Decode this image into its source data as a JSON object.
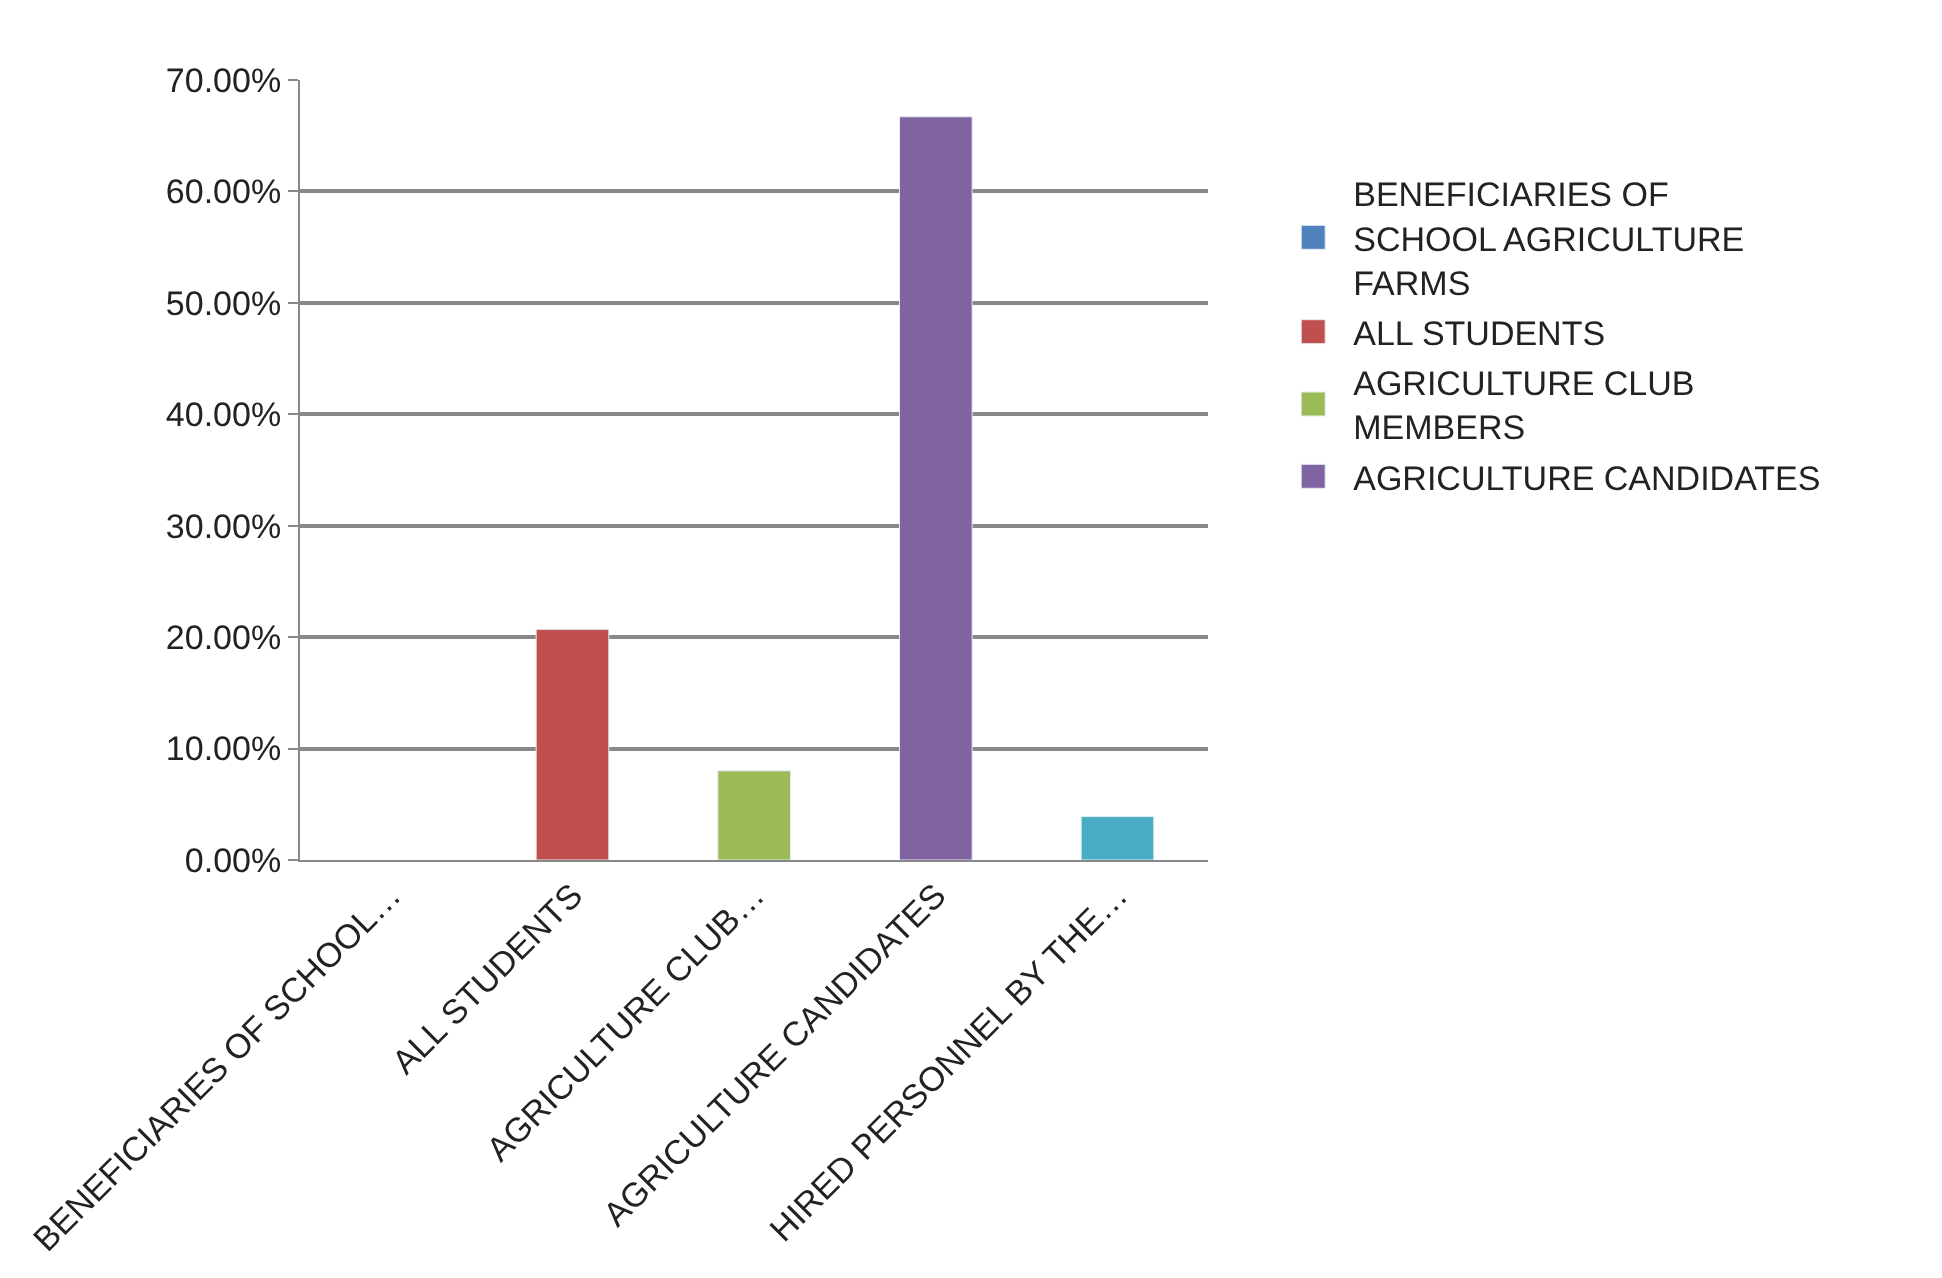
{
  "chart_data": {
    "type": "bar",
    "categories": [
      "BENEFICIARIES OF SCHOOL…",
      "ALL STUDENTS",
      "AGRICULTURE CLUB…",
      "AGRICULTURE CANDIDATES",
      "HIRED PERSONNEL BY THE…"
    ],
    "series": [
      {
        "name": "BENEFICIARIES OF SCHOOL AGRICULTURE FARMS",
        "color": "#4f81bd",
        "values": [
          null,
          null,
          null,
          null,
          null
        ]
      },
      {
        "name": "ALL STUDENTS",
        "color": "#c0504d",
        "values": [
          null,
          20.7,
          null,
          null,
          null
        ]
      },
      {
        "name": "AGRICULTURE CLUB MEMBERS",
        "color": "#9bbb59",
        "values": [
          null,
          null,
          8.0,
          null,
          null
        ]
      },
      {
        "name": "AGRICULTURE CANDIDATES",
        "color": "#8064a2",
        "values": [
          null,
          null,
          null,
          66.7,
          null
        ]
      },
      {
        "color": "#4bacc6",
        "values": [
          null,
          null,
          null,
          null,
          3.9
        ]
      }
    ],
    "ylim": [
      0,
      70
    ],
    "yticks": [
      {
        "value": 0,
        "label": "0.00%"
      },
      {
        "value": 10,
        "label": "10.00%"
      },
      {
        "value": 20,
        "label": "20.00%"
      },
      {
        "value": 30,
        "label": "30.00%"
      },
      {
        "value": 40,
        "label": "40.00%"
      },
      {
        "value": 50,
        "label": "50.00%"
      },
      {
        "value": 60,
        "label": "60.00%"
      },
      {
        "value": 70,
        "label": "70.00%"
      }
    ],
    "grid": "y",
    "legend": "right"
  }
}
